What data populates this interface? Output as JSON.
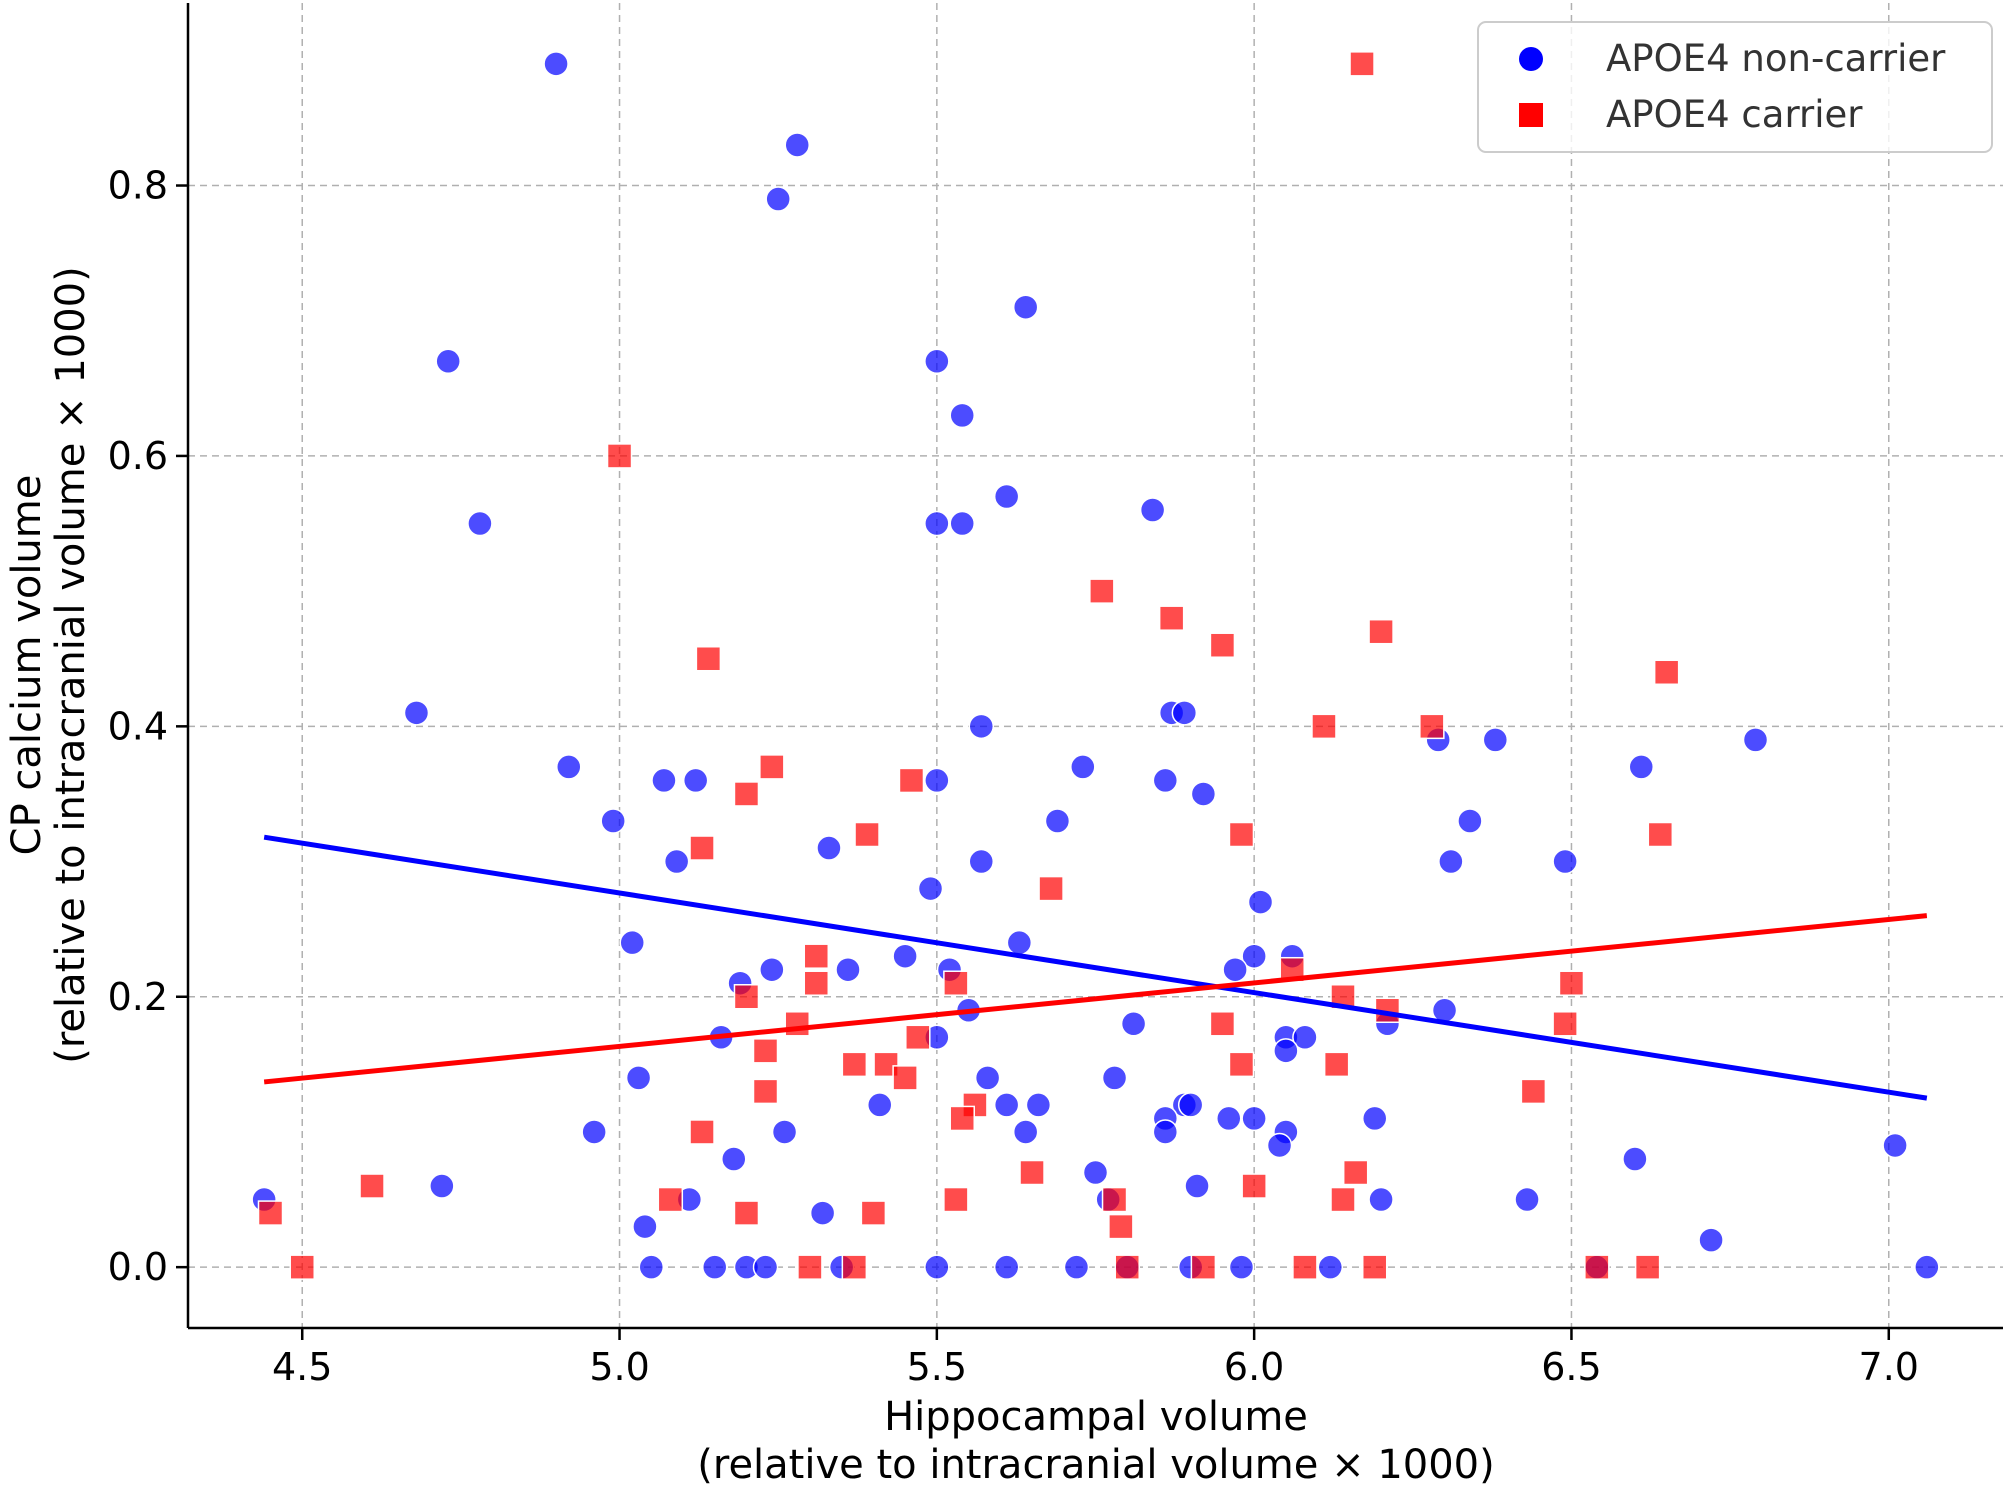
{
  "chart_data": {
    "type": "scatter",
    "xlabel": "Hippocampal volume",
    "xlabel2": "(relative to intracranial volume × 1000)",
    "ylabel": "CP calcium volume",
    "ylabel2": "(relative to intracranial volume × 1000)",
    "xlim": [
      4.32,
      7.18
    ],
    "ylim": [
      -0.045,
      0.935
    ],
    "xticks": [
      "4.5",
      "5.0",
      "5.5",
      "6.0",
      "6.5",
      "7.0"
    ],
    "yticks": [
      "0.0",
      "0.2",
      "0.4",
      "0.6",
      "0.8"
    ],
    "grid": true,
    "legend_position": "top-right",
    "series": [
      {
        "name": "APOE4 non-carrier",
        "marker": "circle",
        "color": "#0000ff",
        "points": [
          [
            4.9,
            0.89
          ],
          [
            5.28,
            0.83
          ],
          [
            5.25,
            0.79
          ],
          [
            5.64,
            0.71
          ],
          [
            4.73,
            0.67
          ],
          [
            5.5,
            0.67
          ],
          [
            5.54,
            0.63
          ],
          [
            5.61,
            0.57
          ],
          [
            5.84,
            0.56
          ],
          [
            4.78,
            0.55
          ],
          [
            5.5,
            0.55
          ],
          [
            5.54,
            0.55
          ],
          [
            4.68,
            0.41
          ],
          [
            5.87,
            0.41
          ],
          [
            5.89,
            0.41
          ],
          [
            5.57,
            0.4
          ],
          [
            6.29,
            0.39
          ],
          [
            6.38,
            0.39
          ],
          [
            6.79,
            0.39
          ],
          [
            4.92,
            0.37
          ],
          [
            5.73,
            0.37
          ],
          [
            6.61,
            0.37
          ],
          [
            5.07,
            0.36
          ],
          [
            5.12,
            0.36
          ],
          [
            5.5,
            0.36
          ],
          [
            5.86,
            0.36
          ],
          [
            5.92,
            0.35
          ],
          [
            4.99,
            0.33
          ],
          [
            5.69,
            0.33
          ],
          [
            6.34,
            0.33
          ],
          [
            5.33,
            0.31
          ],
          [
            5.09,
            0.3
          ],
          [
            5.57,
            0.3
          ],
          [
            6.31,
            0.3
          ],
          [
            6.49,
            0.3
          ],
          [
            5.49,
            0.28
          ],
          [
            6.01,
            0.27
          ],
          [
            5.02,
            0.24
          ],
          [
            5.63,
            0.24
          ],
          [
            5.45,
            0.23
          ],
          [
            6.0,
            0.23
          ],
          [
            6.06,
            0.23
          ],
          [
            5.24,
            0.22
          ],
          [
            5.36,
            0.22
          ],
          [
            5.52,
            0.22
          ],
          [
            5.97,
            0.22
          ],
          [
            5.19,
            0.21
          ],
          [
            5.55,
            0.19
          ],
          [
            6.3,
            0.19
          ],
          [
            5.81,
            0.18
          ],
          [
            6.21,
            0.18
          ],
          [
            5.16,
            0.17
          ],
          [
            5.5,
            0.17
          ],
          [
            6.05,
            0.17
          ],
          [
            6.08,
            0.17
          ],
          [
            6.05,
            0.16
          ],
          [
            5.58,
            0.14
          ],
          [
            5.03,
            0.14
          ],
          [
            5.78,
            0.14
          ],
          [
            5.41,
            0.12
          ],
          [
            5.61,
            0.12
          ],
          [
            5.66,
            0.12
          ],
          [
            5.89,
            0.12
          ],
          [
            5.9,
            0.12
          ],
          [
            5.86,
            0.11
          ],
          [
            5.96,
            0.11
          ],
          [
            6.0,
            0.11
          ],
          [
            6.19,
            0.11
          ],
          [
            4.96,
            0.1
          ],
          [
            5.26,
            0.1
          ],
          [
            5.64,
            0.1
          ],
          [
            5.86,
            0.1
          ],
          [
            6.05,
            0.1
          ],
          [
            6.04,
            0.09
          ],
          [
            7.01,
            0.09
          ],
          [
            5.18,
            0.08
          ],
          [
            6.6,
            0.08
          ],
          [
            5.75,
            0.07
          ],
          [
            4.72,
            0.06
          ],
          [
            5.91,
            0.06
          ],
          [
            4.44,
            0.05
          ],
          [
            5.11,
            0.05
          ],
          [
            5.77,
            0.05
          ],
          [
            6.2,
            0.05
          ],
          [
            6.43,
            0.05
          ],
          [
            5.32,
            0.04
          ],
          [
            5.04,
            0.03
          ],
          [
            6.72,
            0.02
          ],
          [
            5.05,
            0.0
          ],
          [
            5.15,
            0.0
          ],
          [
            5.2,
            0.0
          ],
          [
            5.23,
            0.0
          ],
          [
            5.35,
            0.0
          ],
          [
            5.5,
            0.0
          ],
          [
            5.61,
            0.0
          ],
          [
            5.72,
            0.0
          ],
          [
            5.8,
            0.0
          ],
          [
            5.9,
            0.0
          ],
          [
            5.98,
            0.0
          ],
          [
            6.12,
            0.0
          ],
          [
            6.54,
            0.0
          ],
          [
            7.06,
            0.0
          ]
        ],
        "fit": [
          [
            4.44,
            0.318
          ],
          [
            7.06,
            0.125
          ]
        ]
      },
      {
        "name": "APOE4 carrier",
        "marker": "square",
        "color": "#ff0000",
        "points": [
          [
            6.17,
            0.89
          ],
          [
            5.0,
            0.6
          ],
          [
            5.76,
            0.5
          ],
          [
            5.87,
            0.48
          ],
          [
            6.2,
            0.47
          ],
          [
            5.95,
            0.46
          ],
          [
            5.14,
            0.45
          ],
          [
            6.65,
            0.44
          ],
          [
            6.11,
            0.4
          ],
          [
            6.28,
            0.4
          ],
          [
            5.24,
            0.37
          ],
          [
            5.46,
            0.36
          ],
          [
            5.2,
            0.35
          ],
          [
            5.98,
            0.32
          ],
          [
            6.64,
            0.32
          ],
          [
            5.39,
            0.32
          ],
          [
            5.13,
            0.31
          ],
          [
            5.68,
            0.28
          ],
          [
            5.31,
            0.23
          ],
          [
            6.06,
            0.22
          ],
          [
            5.2,
            0.2
          ],
          [
            5.31,
            0.21
          ],
          [
            5.53,
            0.21
          ],
          [
            6.5,
            0.21
          ],
          [
            6.14,
            0.2
          ],
          [
            6.21,
            0.19
          ],
          [
            5.28,
            0.18
          ],
          [
            5.95,
            0.18
          ],
          [
            6.49,
            0.18
          ],
          [
            5.47,
            0.17
          ],
          [
            5.23,
            0.16
          ],
          [
            5.37,
            0.15
          ],
          [
            5.42,
            0.15
          ],
          [
            5.98,
            0.15
          ],
          [
            6.13,
            0.15
          ],
          [
            5.45,
            0.14
          ],
          [
            5.23,
            0.13
          ],
          [
            6.44,
            0.13
          ],
          [
            5.56,
            0.12
          ],
          [
            5.54,
            0.11
          ],
          [
            5.13,
            0.1
          ],
          [
            5.65,
            0.07
          ],
          [
            6.16,
            0.07
          ],
          [
            4.61,
            0.06
          ],
          [
            6.0,
            0.06
          ],
          [
            5.08,
            0.05
          ],
          [
            5.53,
            0.05
          ],
          [
            5.78,
            0.05
          ],
          [
            6.14,
            0.05
          ],
          [
            4.45,
            0.04
          ],
          [
            5.2,
            0.04
          ],
          [
            5.4,
            0.04
          ],
          [
            5.79,
            0.03
          ],
          [
            4.5,
            0.0
          ],
          [
            5.3,
            0.0
          ],
          [
            5.37,
            0.0
          ],
          [
            5.8,
            0.0
          ],
          [
            5.92,
            0.0
          ],
          [
            6.08,
            0.0
          ],
          [
            6.19,
            0.0
          ],
          [
            6.54,
            0.0
          ],
          [
            6.62,
            0.0
          ]
        ],
        "fit": [
          [
            4.44,
            0.137
          ],
          [
            7.06,
            0.26
          ]
        ]
      }
    ]
  }
}
